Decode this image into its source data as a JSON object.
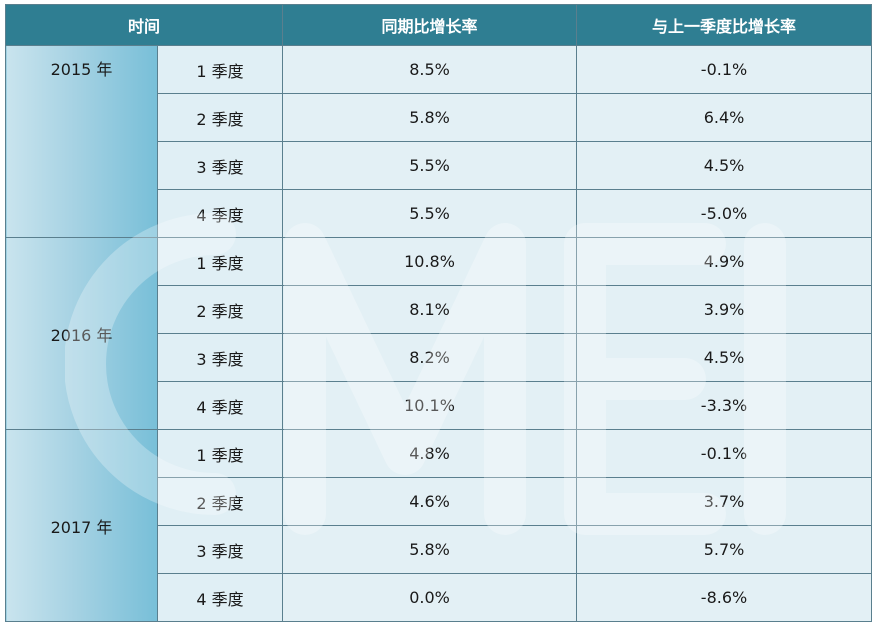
{
  "header": {
    "time": "时间",
    "yoy": "同期比增长率",
    "qoq": "与上一季度比增长率"
  },
  "watermark_text": "CMEI",
  "groups": [
    {
      "year": "2015 年",
      "rows": [
        {
          "quarter": "1 季度",
          "yoy": "8.5%",
          "qoq": "-0.1%"
        },
        {
          "quarter": "2 季度",
          "yoy": "5.8%",
          "qoq": "6.4%"
        },
        {
          "quarter": "3 季度",
          "yoy": "5.5%",
          "qoq": "4.5%"
        },
        {
          "quarter": "4 季度",
          "yoy": "5.5%",
          "qoq": "-5.0%"
        }
      ]
    },
    {
      "year": "2016 年",
      "rows": [
        {
          "quarter": "1 季度",
          "yoy": "10.8%",
          "qoq": "4.9%"
        },
        {
          "quarter": "2 季度",
          "yoy": "8.1%",
          "qoq": "3.9%"
        },
        {
          "quarter": "3 季度",
          "yoy": "8.2%",
          "qoq": "4.5%"
        },
        {
          "quarter": "4 季度",
          "yoy": "10.1%",
          "qoq": "-3.3%"
        }
      ]
    },
    {
      "year": "2017 年",
      "rows": [
        {
          "quarter": "1 季度",
          "yoy": "4.8%",
          "qoq": "-0.1%"
        },
        {
          "quarter": "2 季度",
          "yoy": "4.6%",
          "qoq": "3.7%"
        },
        {
          "quarter": "3 季度",
          "yoy": "5.8%",
          "qoq": "5.7%"
        },
        {
          "quarter": "4 季度",
          "yoy": "0.0%",
          "qoq": "-8.6%"
        }
      ]
    }
  ]
}
